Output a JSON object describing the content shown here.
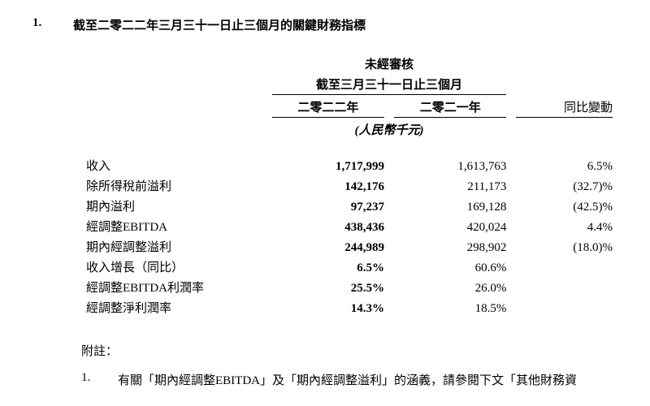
{
  "section": {
    "number": "1.",
    "title": "截至二零二二年三月三十一日止三個月的關鍵財務指標"
  },
  "table": {
    "header_top": "未經審核",
    "header_sub": "截至三月三十一日止三個月",
    "year_2022": "二零二二年",
    "year_2021": "二零二一年",
    "change_label": "同比變動",
    "unit": "(人民幣千元)",
    "rows": [
      {
        "label": "收入",
        "v2022": "1,717,999",
        "v2021": "1,613,763",
        "chg": "6.5%"
      },
      {
        "label": "除所得稅前溢利",
        "v2022": "142,176",
        "v2021": "211,173",
        "chg": "(32.7)%"
      },
      {
        "label": "期內溢利",
        "v2022": "97,237",
        "v2021": "169,128",
        "chg": "(42.5)%"
      },
      {
        "label": "經調整EBITDA",
        "v2022": "438,436",
        "v2021": "420,024",
        "chg": "4.4%"
      },
      {
        "label": "期內經調整溢利",
        "v2022": "244,989",
        "v2021": "298,902",
        "chg": "(18.0)%"
      },
      {
        "label": "收入增長（同比）",
        "v2022": "6.5%",
        "v2021": "60.6%",
        "chg": ""
      },
      {
        "label": "經調整EBITDA利潤率",
        "v2022": "25.5%",
        "v2021": "26.0%",
        "chg": ""
      },
      {
        "label": "經調整淨利潤率",
        "v2022": "14.3%",
        "v2021": "18.5%",
        "chg": ""
      }
    ]
  },
  "notes": {
    "label": "附註：",
    "items": [
      {
        "num": "1.",
        "text": "有關「期內經調整EBITDA」及「期內經調整溢利」的涵義，請參閱下文「其他財務資"
      }
    ]
  }
}
